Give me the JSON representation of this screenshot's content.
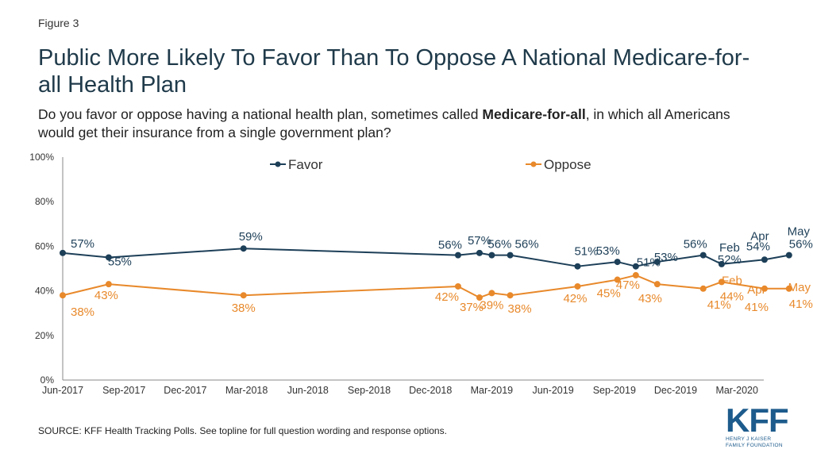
{
  "figure_label": "Figure 3",
  "title": "Public More Likely To Favor Than To Oppose A National Medicare-for-all Health Plan",
  "subtitle": {
    "before": "Do you favor or oppose having a national health plan, sometimes called ",
    "bold": "Medicare-for-all",
    "after": ", in which all Americans would get their insurance from a single government plan?"
  },
  "source": "SOURCE: KFF Health Tracking Polls. See topline for full question wording and response options.",
  "logo": {
    "mark": "KFF",
    "line1": "HENRY J KAISER",
    "line2": "FAMILY FOUNDATION"
  },
  "colors": {
    "favor": "#1d3f58",
    "oppose": "#e8892b",
    "axis": "#666666"
  },
  "chart_data": {
    "type": "line",
    "x_tick_labels": [
      "Jun-2017",
      "Sep-2017",
      "Dec-2017",
      "Mar-2018",
      "Jun-2018",
      "Sep-2018",
      "Dec-2018",
      "Mar-2019",
      "Jun-2019",
      "Sep-2019",
      "Dec-2019",
      "Mar-2020"
    ],
    "y_tick_labels": [
      "0%",
      "20%",
      "40%",
      "60%",
      "80%",
      "100%"
    ],
    "ylim": [
      0,
      100
    ],
    "legend_position": "top",
    "series": [
      {
        "name": "Favor",
        "color": "#1d3f58",
        "points": [
          {
            "x": 0.0,
            "value": 57,
            "label": "57%"
          },
          {
            "x": 0.75,
            "value": 55,
            "label": "55%"
          },
          {
            "x": 2.95,
            "value": 59,
            "label": "59%"
          },
          {
            "x": 6.45,
            "value": 56,
            "label": "56%"
          },
          {
            "x": 6.8,
            "value": 57,
            "label": "57%"
          },
          {
            "x": 7.0,
            "value": 56,
            "label": "56%"
          },
          {
            "x": 7.3,
            "value": 56,
            "label": "56%"
          },
          {
            "x": 8.4,
            "value": 51,
            "label": "51%"
          },
          {
            "x": 9.05,
            "value": 53,
            "label": "53%"
          },
          {
            "x": 9.35,
            "value": 51,
            "label": "51%"
          },
          {
            "x": 9.7,
            "value": 53,
            "label": "53%"
          },
          {
            "x": 10.45,
            "value": 56,
            "label": "56%"
          },
          {
            "x": 10.75,
            "value": 52,
            "label": "52%",
            "month": "Feb"
          },
          {
            "x": 11.45,
            "value": 54,
            "label": "54%",
            "month": "Apr"
          },
          {
            "x": 11.85,
            "value": 56,
            "label": "56%",
            "month": "May"
          }
        ]
      },
      {
        "name": "Oppose",
        "color": "#e8892b",
        "points": [
          {
            "x": 0.0,
            "value": 38,
            "label": "38%"
          },
          {
            "x": 0.75,
            "value": 43,
            "label": "43%"
          },
          {
            "x": 2.95,
            "value": 38,
            "label": "38%"
          },
          {
            "x": 6.45,
            "value": 42,
            "label": "42%"
          },
          {
            "x": 6.8,
            "value": 37,
            "label": "37%"
          },
          {
            "x": 7.0,
            "value": 39,
            "label": "39%"
          },
          {
            "x": 7.3,
            "value": 38,
            "label": "38%"
          },
          {
            "x": 8.4,
            "value": 42,
            "label": "42%"
          },
          {
            "x": 9.05,
            "value": 45,
            "label": "45%"
          },
          {
            "x": 9.35,
            "value": 47,
            "label": "47%"
          },
          {
            "x": 9.7,
            "value": 43,
            "label": "43%"
          },
          {
            "x": 10.45,
            "value": 41,
            "label": "41%"
          },
          {
            "x": 10.75,
            "value": 44,
            "label": "44%",
            "month": "Feb"
          },
          {
            "x": 11.45,
            "value": 41,
            "label": "41%",
            "month": "Apr"
          },
          {
            "x": 11.85,
            "value": 41,
            "label": "41%",
            "month": "May"
          }
        ]
      }
    ]
  }
}
